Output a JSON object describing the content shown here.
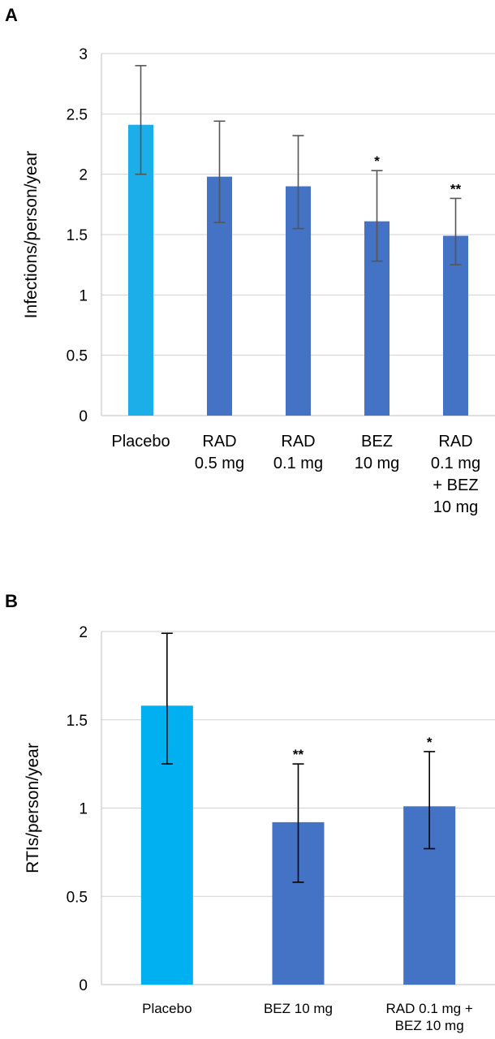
{
  "chart_data": [
    {
      "panel": "A",
      "type": "bar",
      "title": "",
      "xlabel": "",
      "ylabel": "Infections/person/year",
      "ylim": [
        0,
        3
      ],
      "yticks": [
        "0",
        "0.5",
        "1",
        "1.5",
        "2",
        "2.5",
        "3"
      ],
      "grid": true,
      "categories": [
        [
          "Placebo"
        ],
        [
          "RAD",
          "0.5 mg"
        ],
        [
          "RAD",
          "0.1 mg"
        ],
        [
          "BEZ",
          "10 mg"
        ],
        [
          "RAD",
          "0.1 mg",
          "+ BEZ",
          "10 mg"
        ]
      ],
      "values": [
        2.41,
        1.98,
        1.9,
        1.61,
        1.49
      ],
      "error_low": [
        2.0,
        1.6,
        1.55,
        1.28,
        1.25
      ],
      "error_high": [
        2.9,
        2.44,
        2.32,
        2.03,
        1.8
      ],
      "significance": [
        "",
        "",
        "",
        "*",
        "**"
      ],
      "colors": [
        "#1BAEE8",
        "#4472C4",
        "#4472C4",
        "#4472C4",
        "#4472C4"
      ]
    },
    {
      "panel": "B",
      "type": "bar",
      "title": "",
      "xlabel": "",
      "ylabel": "RTIs/person/year",
      "ylim": [
        0,
        2
      ],
      "yticks": [
        "0",
        "0.5",
        "1",
        "1.5",
        "2"
      ],
      "grid": true,
      "categories": [
        [
          "Placebo"
        ],
        [
          "BEZ 10 mg"
        ],
        [
          "RAD 0.1 mg +",
          "BEZ 10 mg"
        ]
      ],
      "values": [
        1.58,
        0.92,
        1.01
      ],
      "error_low": [
        1.25,
        0.58,
        0.77
      ],
      "error_high": [
        1.99,
        1.25,
        1.32
      ],
      "significance": [
        "",
        "**",
        "*"
      ],
      "colors": [
        "#00B0F0",
        "#4472C4",
        "#4472C4"
      ]
    }
  ],
  "style": {
    "grid_color": "#D0D0D0",
    "axis_color": "#BFBFBF",
    "error_bar_color_a": "#555555",
    "error_bar_color_b": "#000000"
  }
}
